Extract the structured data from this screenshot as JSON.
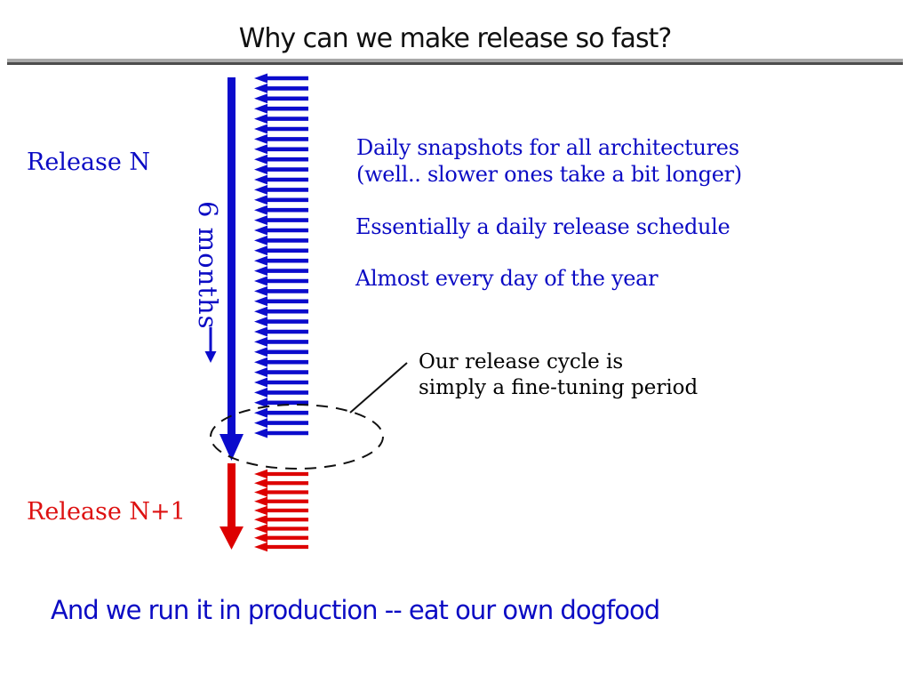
{
  "title": "Why can we make release so fast?",
  "left_labels": {
    "release_n": "Release N",
    "release_n_plus_1": "Release N+1"
  },
  "timeline": {
    "duration_label": "6 months",
    "blue_arrows": {
      "count": 36,
      "color": "#0b0bcc"
    },
    "red_arrows": {
      "count": 9,
      "color": "#dd0000"
    }
  },
  "notes": {
    "daily_snapshots_line1": "Daily snapshots for all architectures",
    "daily_snapshots_line2": "(well.. slower ones take a bit longer)",
    "daily_schedule": "Essentially a daily release schedule",
    "almost_every_day": "Almost every day of the year"
  },
  "callout": {
    "line1": "Our release cycle is",
    "line2": "simply a fine-tuning period"
  },
  "footer": "And we run it in production -- eat our own dogfood",
  "colors": {
    "blue_text": "#0b0bc4",
    "red_text": "#dd1111",
    "black": "#000000",
    "rule_gray": "#a9a9a9"
  }
}
